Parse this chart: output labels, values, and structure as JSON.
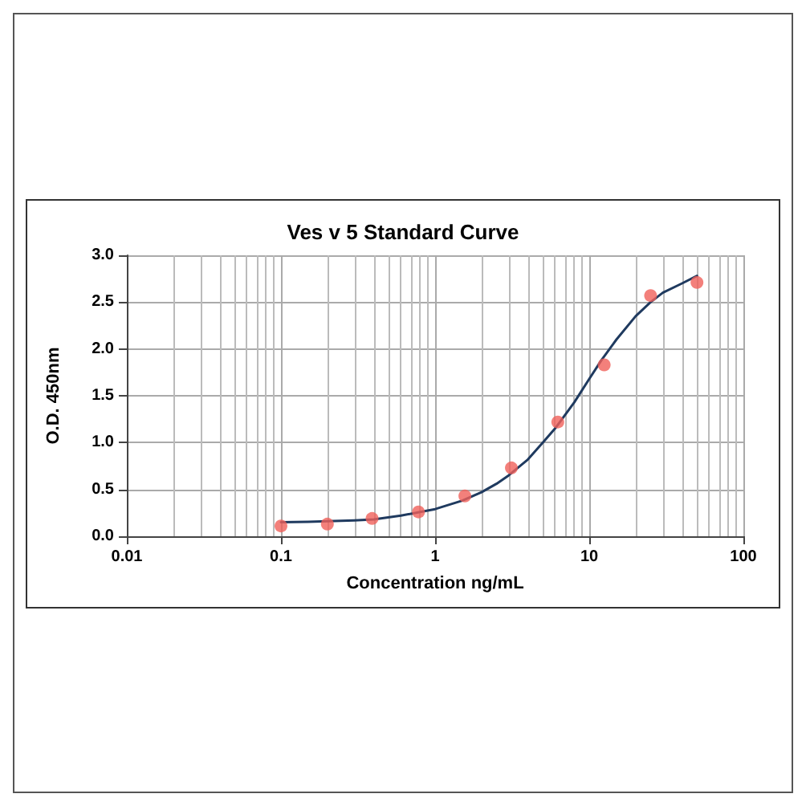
{
  "chart_data": {
    "type": "scatter",
    "title": "Ves v 5 Standard Curve",
    "xlabel": "Concentration ng/mL",
    "ylabel": "O.D. 450nm",
    "series": [
      {
        "color": "#f0605a",
        "marker": "circle",
        "x": [
          0.1,
          0.2,
          0.39,
          0.78,
          1.56,
          3.125,
          6.25,
          12.5,
          25,
          50
        ],
        "values": [
          0.11,
          0.13,
          0.19,
          0.26,
          0.43,
          0.73,
          1.22,
          1.83,
          2.57,
          2.71
        ]
      },
      {
        "type": "line",
        "marker": "none",
        "line_style": "solid",
        "color": "#1f3a5f",
        "x": [
          0.1,
          0.15,
          0.2,
          0.3,
          0.4,
          0.6,
          0.8,
          1,
          1.5,
          2,
          2.5,
          3,
          4,
          5,
          6,
          7,
          8,
          10,
          12,
          15,
          20,
          25,
          30,
          40,
          50
        ],
        "values": [
          0.15,
          0.155,
          0.16,
          0.17,
          0.18,
          0.22,
          0.26,
          0.29,
          0.38,
          0.47,
          0.56,
          0.65,
          0.82,
          1.0,
          1.15,
          1.3,
          1.43,
          1.68,
          1.88,
          2.1,
          2.35,
          2.5,
          2.6,
          2.7,
          2.78
        ]
      }
    ],
    "log": "x",
    "xlim": [
      0.01,
      100
    ],
    "xticks": [
      0.01,
      0.1,
      1,
      10,
      100
    ],
    "ylim": [
      0,
      3
    ],
    "yticks": [
      {
        "value": 0,
        "label": "0.0"
      },
      0.5,
      {
        "value": 1,
        "label": "1.0"
      },
      1.5,
      {
        "value": 2,
        "label": "2.0"
      },
      2.5,
      {
        "value": 3,
        "label": "3.0"
      }
    ],
    "grid": true
  }
}
